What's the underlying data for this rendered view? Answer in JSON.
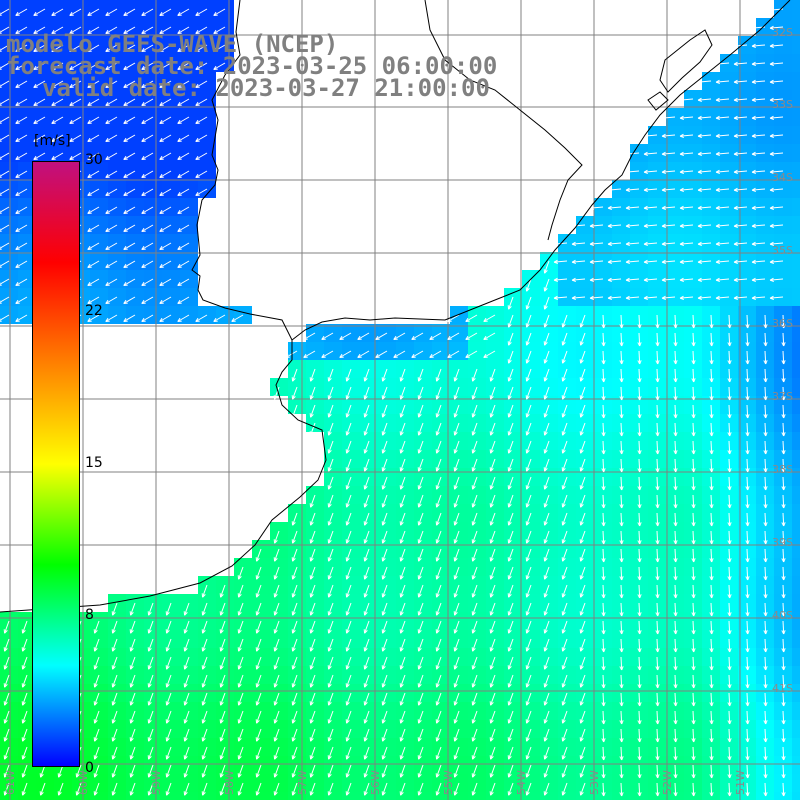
{
  "title": {
    "line1": "modelo GEFS-WAVE (NCEP)",
    "line2": "forecast date: 2023-03-25 06:00:00",
    "line3": "valid date: 2023-03-27 21:00:00"
  },
  "colorbar": {
    "units": "[m/s]",
    "ticks": [
      {
        "label": "30",
        "value": 30
      },
      {
        "label": "22",
        "value": 22
      },
      {
        "label": "15",
        "value": 15
      },
      {
        "label": "8",
        "value": 8
      },
      {
        "label": "0",
        "value": 0
      }
    ],
    "colors": [
      "#0000ff",
      "#00ffff",
      "#00ff00",
      "#ffff00",
      "#ff8000",
      "#ff0000",
      "#c01080"
    ]
  },
  "map": {
    "lat_labels": [
      "32S",
      "33S",
      "34S",
      "35S",
      "36S",
      "37S",
      "38S",
      "39S",
      "40S",
      "41S"
    ],
    "lon_labels": [
      "61W",
      "60W",
      "59W",
      "58W",
      "57W",
      "56W",
      "55W",
      "54W",
      "53W",
      "52W",
      "51W"
    ],
    "wind_direction": "southward, rotating to south-west near the coast",
    "colors": {
      "land": "#ffffff",
      "grid": "#808080",
      "coast": "#000000",
      "arrows": "#ffffff"
    }
  }
}
